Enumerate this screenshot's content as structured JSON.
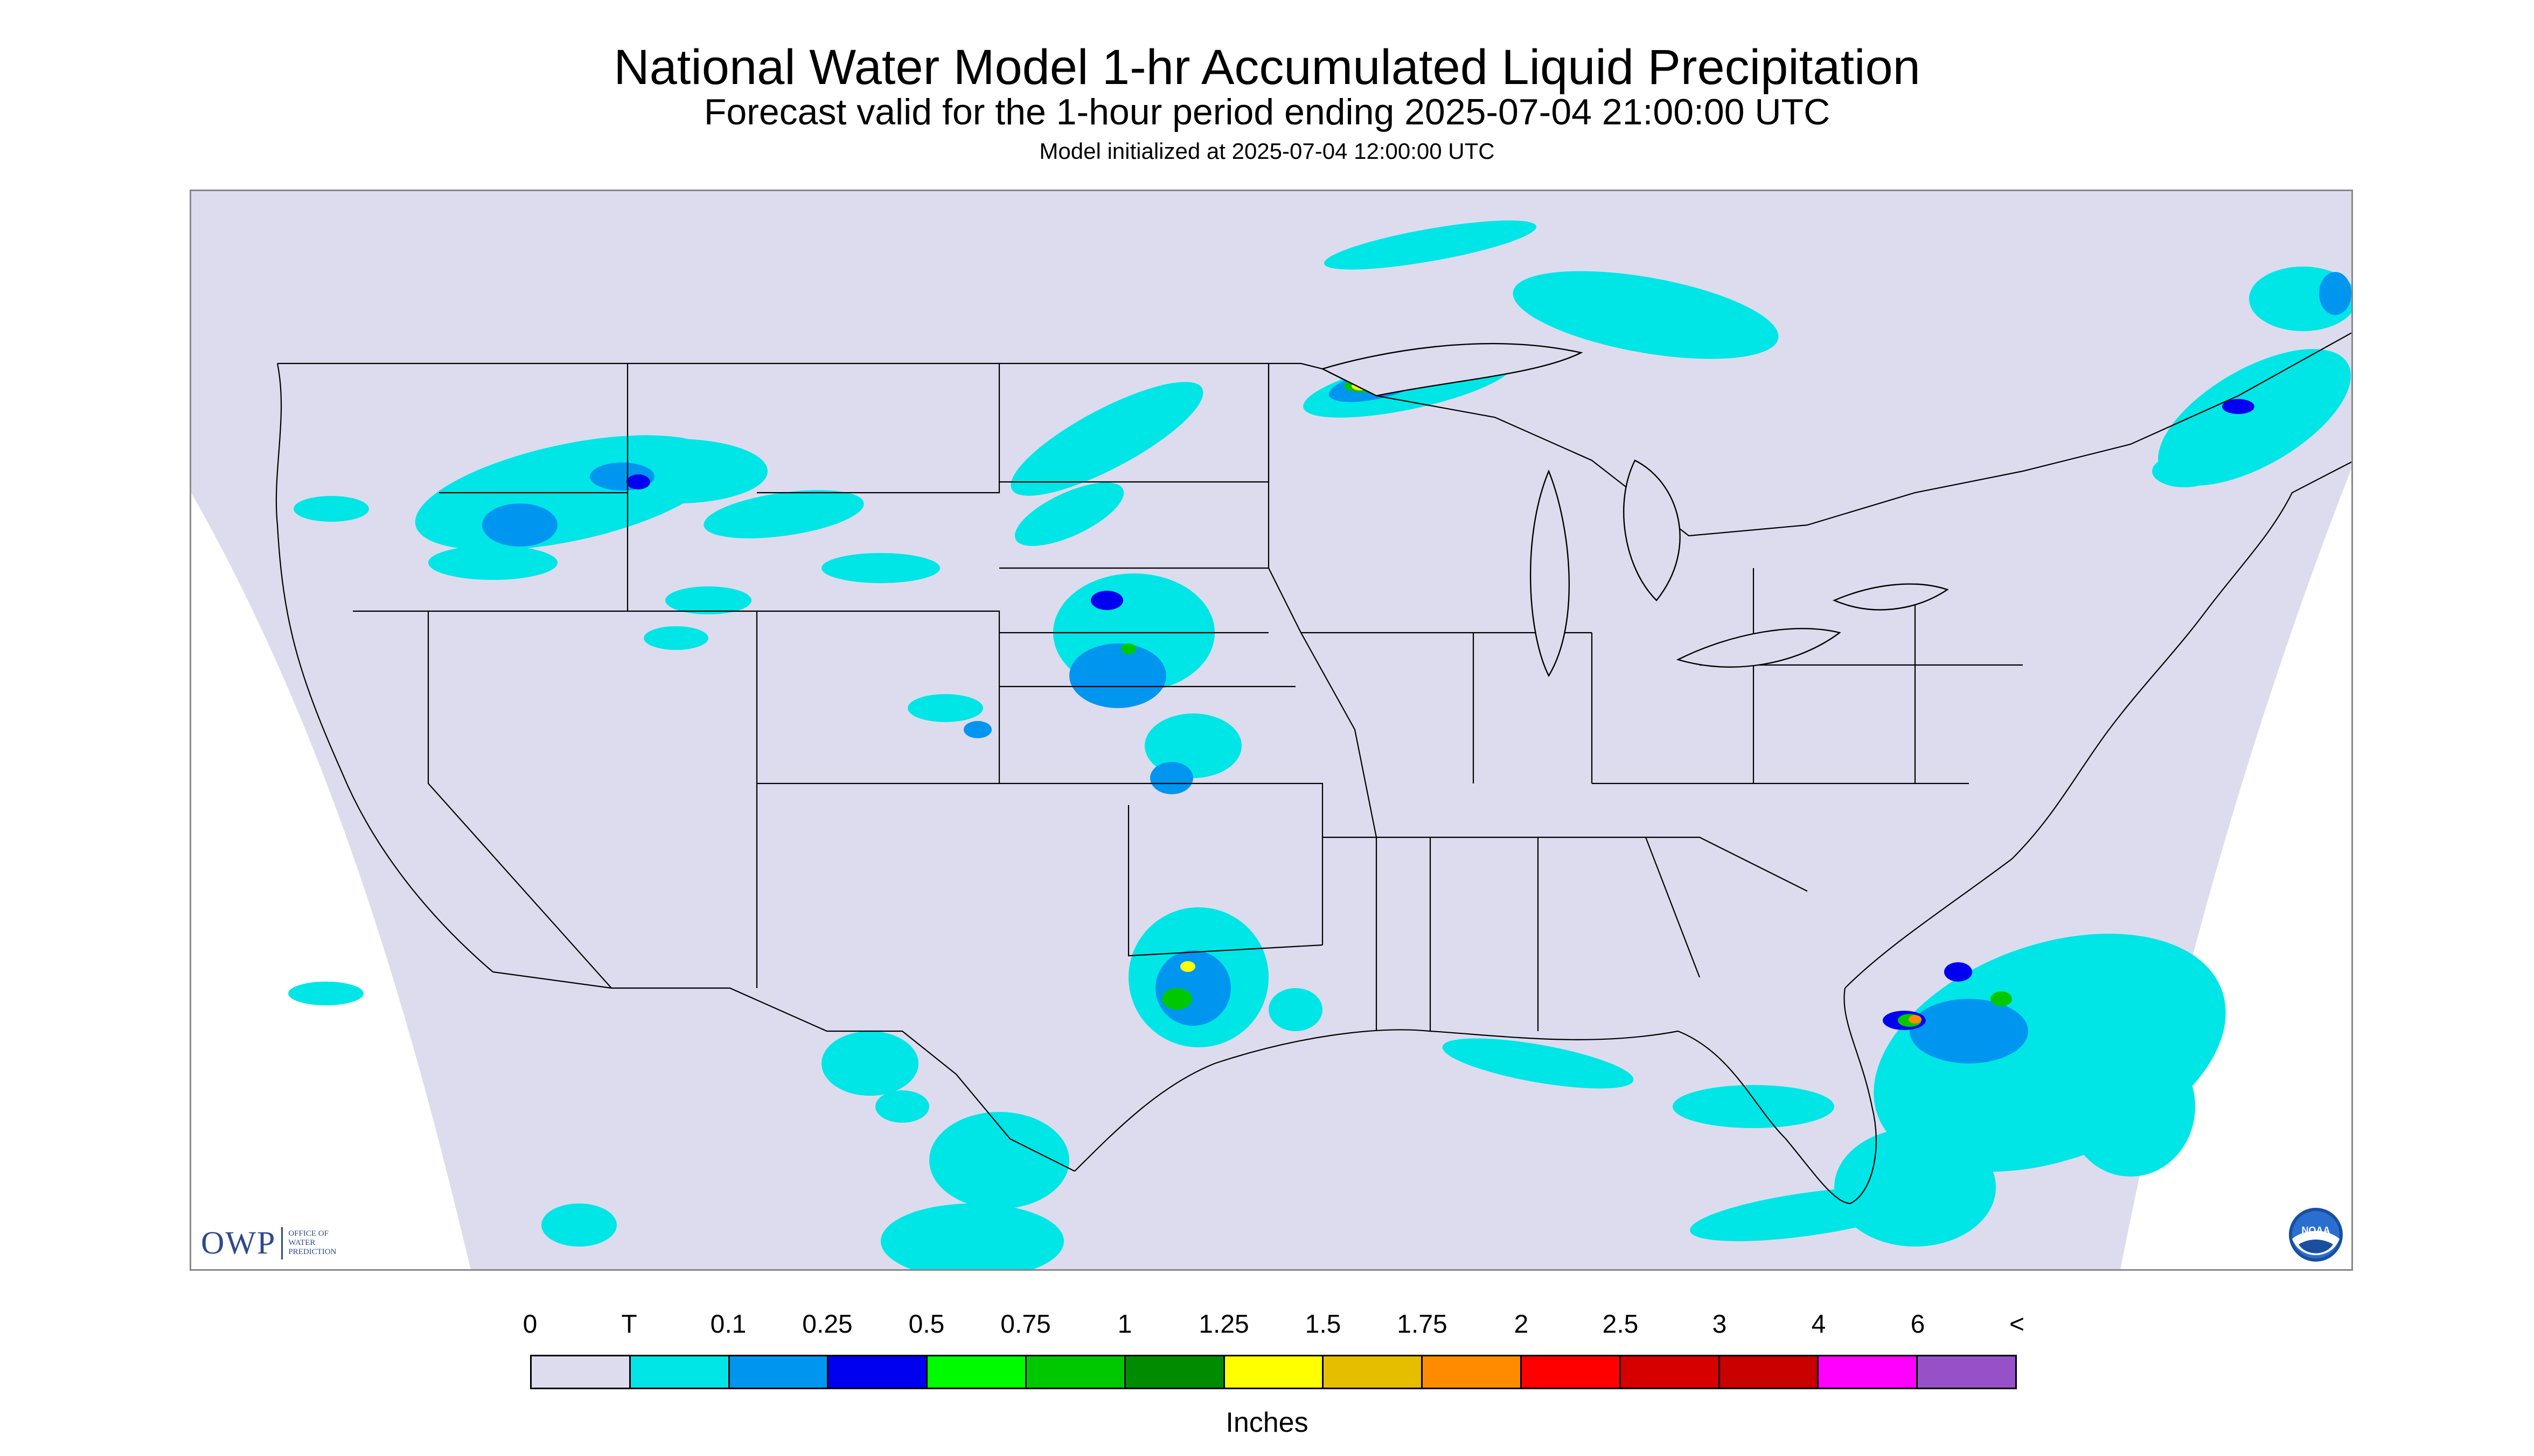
{
  "header": {
    "title": "National Water Model 1-hr Accumulated Liquid Precipitation",
    "subtitle": "Forecast valid for the 1-hour period ending 2025-07-04 21:00:00 UTC",
    "init": "Model initialized at 2025-07-04 12:00:00 UTC"
  },
  "map": {
    "background_color": "#dcdcee",
    "no_data_color": "#ffffff",
    "boundary_color": "#000000"
  },
  "logos": {
    "owp_text": "OWP",
    "owp_subtext": "OFFICE OF\nWATER\nPREDICTION",
    "noaa_text": "NOAA",
    "noaa_icon": "noaa-seal-icon"
  },
  "legend": {
    "labels": [
      "0",
      "T",
      "0.1",
      "0.25",
      "0.5",
      "0.75",
      "1",
      "1.25",
      "1.5",
      "1.75",
      "2",
      "2.5",
      "3",
      "4",
      "6",
      "<"
    ],
    "colors": [
      "#dcdcee",
      "#00e6e6",
      "#0096f0",
      "#0000f0",
      "#00fa00",
      "#00c800",
      "#008c00",
      "#ffff00",
      "#e6be00",
      "#ff8c00",
      "#ff0000",
      "#d70000",
      "#c80000",
      "#ff00ff",
      "#9650c8"
    ],
    "units": "Inches"
  }
}
